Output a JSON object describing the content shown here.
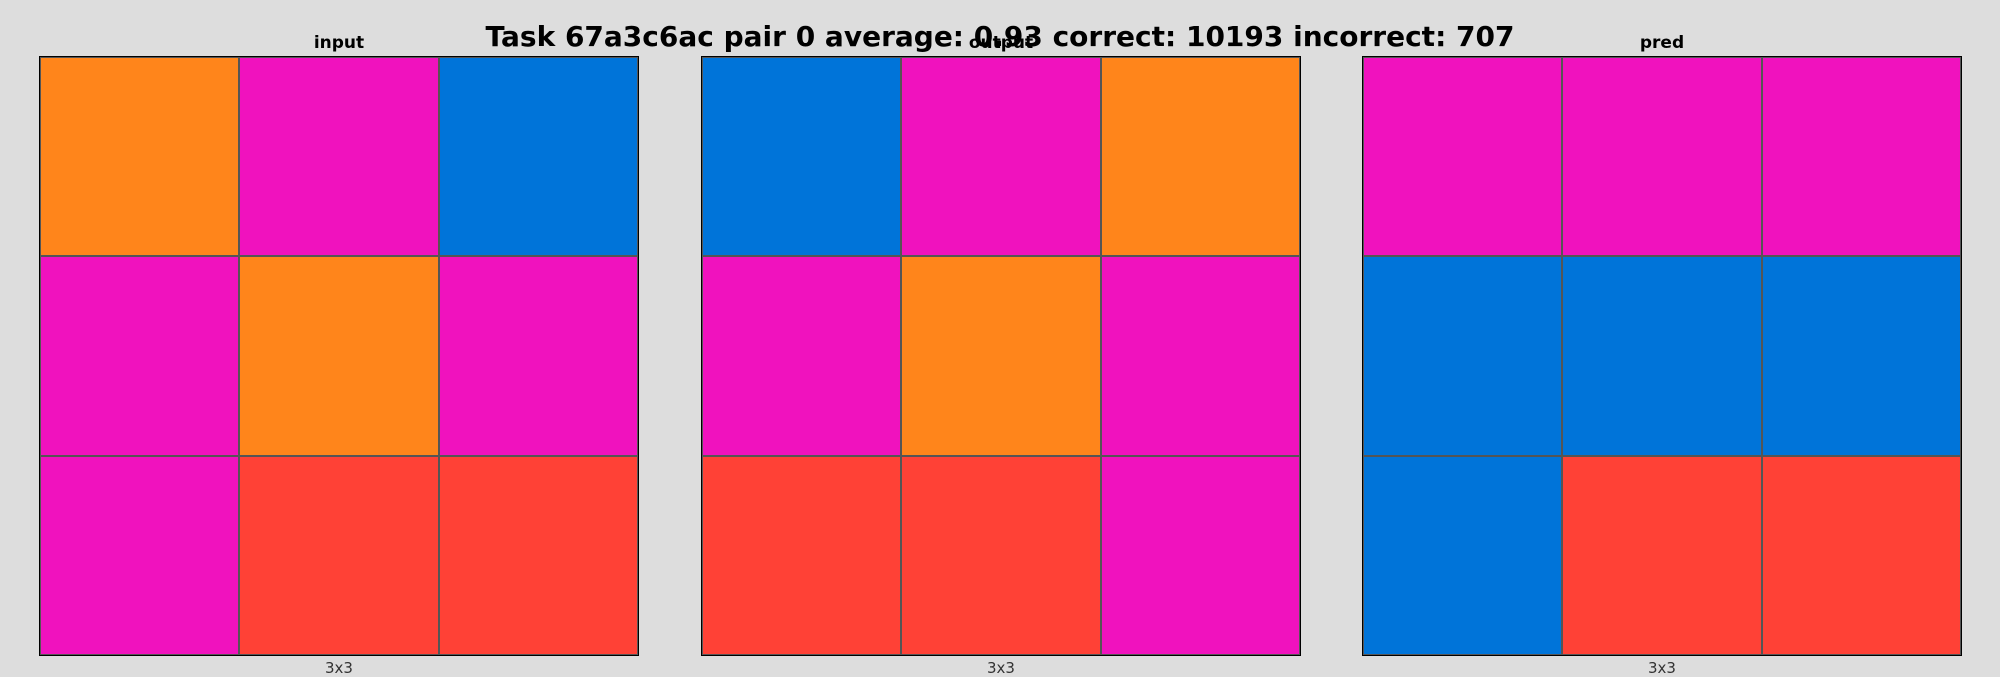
{
  "title": "Task 67a3c6ac pair 0 average: 0.93 correct: 10193 incorrect: 707",
  "palette": {
    "orange": "#ff851b",
    "magenta": "#f012be",
    "blue": "#0074d9",
    "red": "#ff4136"
  },
  "panels": [
    {
      "title": "input",
      "dims": "3x3",
      "grid": [
        [
          "orange",
          "magenta",
          "blue"
        ],
        [
          "magenta",
          "orange",
          "magenta"
        ],
        [
          "magenta",
          "red",
          "red"
        ]
      ]
    },
    {
      "title": "output",
      "dims": "3x3",
      "grid": [
        [
          "blue",
          "magenta",
          "orange"
        ],
        [
          "magenta",
          "orange",
          "magenta"
        ],
        [
          "red",
          "red",
          "magenta"
        ]
      ]
    },
    {
      "title": "pred",
      "dims": "3x3",
      "grid": [
        [
          "magenta",
          "magenta",
          "magenta"
        ],
        [
          "blue",
          "blue",
          "blue"
        ],
        [
          "blue",
          "red",
          "red"
        ]
      ]
    }
  ]
}
